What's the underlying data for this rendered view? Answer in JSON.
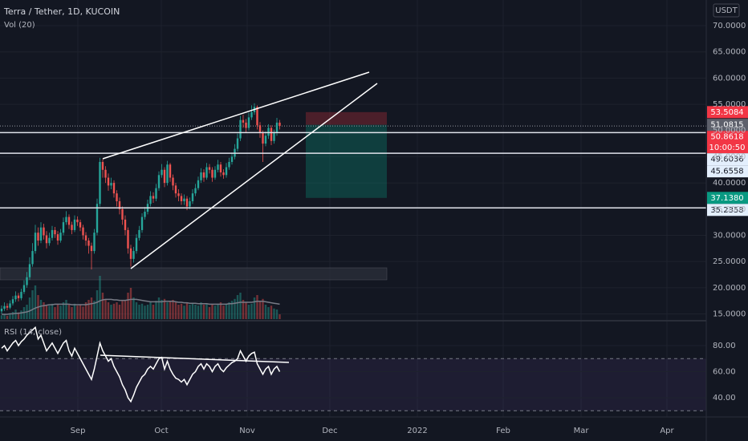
{
  "chart_data": [
    {
      "type": "candlestick",
      "title": "Terra / Tether, 1D, KUCOIN",
      "volume_label": "Vol (20)",
      "currency": "USDT",
      "up_color": "#26a69a",
      "down_color": "#ef5350",
      "open": [
        15.5,
        16.0,
        16.5,
        16.2,
        17.0,
        17.8,
        18.5,
        18.0,
        19.2,
        20.5,
        22.0,
        24.5,
        27.0,
        30.5,
        29.0,
        31.5,
        30.0,
        28.5,
        29.5,
        31.0,
        30.2,
        29.0,
        30.5,
        32.5,
        33.5,
        32.0,
        31.0,
        33.0,
        32.5,
        31.5,
        30.0,
        29.0,
        28.0,
        27.0,
        30.5,
        36.0,
        44.0,
        42.5,
        41.0,
        39.5,
        40.0,
        38.0,
        36.5,
        35.0,
        33.0,
        31.0,
        27.5,
        25.5,
        27.0,
        29.5,
        31.0,
        33.5,
        34.5,
        36.0,
        37.5,
        37.0,
        39.0,
        41.5,
        42.5,
        40.0,
        43.5,
        41.0,
        39.5,
        38.0,
        37.5,
        36.5,
        37.0,
        35.5,
        36.5,
        38.0,
        39.0,
        40.5,
        42.0,
        41.0,
        43.0,
        42.5,
        41.0,
        42.5,
        43.5,
        42.0,
        41.5,
        43.0,
        44.0,
        45.0,
        46.5,
        48.5,
        52.0,
        51.5,
        50.5,
        52.5,
        53.5,
        54.5,
        51.0,
        49.5,
        47.5,
        49.0,
        50.5,
        48.0,
        49.5,
        51.5
      ],
      "high": [
        16.6,
        17.2,
        17.0,
        17.6,
        18.4,
        19.3,
        19.0,
        19.8,
        21.4,
        23.0,
        25.8,
        28.5,
        32.0,
        31.5,
        32.5,
        32.2,
        30.8,
        30.5,
        31.8,
        31.6,
        30.8,
        31.2,
        33.4,
        34.6,
        34.0,
        32.6,
        33.8,
        33.6,
        33.0,
        32.0,
        30.6,
        29.5,
        28.6,
        31.2,
        37.0,
        44.8,
        44.5,
        43.2,
        41.8,
        41.0,
        40.5,
        38.6,
        37.2,
        35.5,
        33.8,
        31.5,
        28.2,
        27.8,
        30.2,
        31.8,
        34.2,
        35.4,
        36.8,
        38.4,
        38.2,
        39.8,
        42.2,
        43.6,
        43.0,
        44.2,
        43.8,
        41.6,
        40.0,
        38.8,
        38.0,
        37.8,
        37.5,
        37.2,
        38.8,
        39.8,
        41.2,
        42.8,
        42.6,
        43.8,
        43.6,
        43.0,
        43.2,
        44.4,
        44.0,
        42.6,
        43.8,
        44.8,
        45.8,
        47.4,
        49.4,
        52.8,
        53.0,
        52.2,
        53.4,
        54.8,
        55.2,
        54.8,
        51.6,
        50.0,
        49.8,
        51.2,
        51.0,
        50.2,
        52.4,
        52.0
      ],
      "low": [
        15.0,
        15.6,
        15.7,
        15.9,
        16.6,
        17.3,
        17.4,
        17.6,
        18.8,
        20.0,
        21.5,
        24.0,
        26.5,
        28.0,
        28.5,
        29.2,
        27.5,
        28.0,
        29.0,
        29.5,
        28.2,
        28.6,
        30.0,
        32.0,
        31.2,
        30.2,
        30.6,
        31.8,
        30.8,
        29.2,
        28.0,
        26.5,
        23.5,
        26.5,
        30.0,
        35.5,
        41.0,
        40.0,
        38.5,
        38.8,
        37.2,
        35.5,
        34.0,
        32.0,
        30.0,
        26.5,
        24.0,
        24.8,
        26.5,
        29.0,
        30.5,
        33.0,
        34.0,
        35.5,
        36.2,
        36.5,
        38.5,
        41.0,
        39.2,
        39.5,
        40.2,
        38.6,
        37.2,
        36.5,
        35.8,
        35.8,
        34.8,
        35.0,
        36.0,
        37.5,
        38.6,
        40.0,
        40.2,
        40.6,
        41.8,
        40.2,
        40.6,
        42.0,
        41.2,
        40.8,
        41.0,
        42.5,
        43.5,
        44.5,
        46.0,
        48.0,
        50.5,
        49.6,
        50.0,
        52.0,
        53.0,
        50.2,
        48.6,
        44.0,
        47.0,
        48.4,
        47.2,
        47.5,
        49.0,
        50.2
      ],
      "close": [
        16.0,
        16.5,
        16.2,
        17.0,
        17.8,
        18.5,
        18.0,
        19.2,
        20.5,
        22.0,
        24.5,
        27.0,
        30.5,
        29.0,
        31.5,
        30.0,
        28.5,
        29.5,
        31.0,
        30.2,
        29.0,
        30.5,
        32.5,
        33.5,
        32.0,
        31.0,
        33.0,
        32.5,
        31.5,
        30.0,
        29.0,
        28.0,
        27.0,
        30.5,
        36.0,
        44.0,
        42.5,
        41.0,
        39.5,
        40.0,
        38.0,
        36.5,
        35.0,
        33.0,
        31.0,
        27.5,
        25.5,
        27.0,
        29.5,
        31.0,
        33.5,
        34.5,
        36.0,
        37.5,
        37.0,
        39.0,
        41.5,
        42.5,
        40.0,
        43.5,
        41.0,
        39.5,
        38.0,
        37.5,
        36.5,
        37.0,
        35.5,
        36.5,
        38.0,
        39.0,
        40.5,
        42.0,
        41.0,
        43.0,
        42.5,
        41.0,
        42.5,
        43.5,
        42.0,
        41.5,
        43.0,
        44.0,
        45.0,
        46.5,
        48.5,
        52.0,
        51.5,
        50.5,
        52.5,
        53.5,
        54.5,
        51.0,
        49.5,
        47.5,
        49.0,
        50.5,
        48.0,
        49.5,
        51.5,
        50.8618
      ],
      "volume": [
        8,
        10,
        7,
        12,
        15,
        20,
        14,
        18,
        25,
        30,
        45,
        60,
        70,
        50,
        40,
        35,
        30,
        28,
        32,
        25,
        30,
        28,
        35,
        40,
        30,
        25,
        32,
        28,
        30,
        26,
        35,
        40,
        45,
        38,
        60,
        90,
        55,
        40,
        35,
        30,
        32,
        35,
        30,
        38,
        40,
        55,
        65,
        45,
        35,
        30,
        32,
        28,
        30,
        35,
        30,
        38,
        45,
        40,
        42,
        35,
        38,
        40,
        35,
        30,
        32,
        28,
        35,
        30,
        32,
        30,
        28,
        35,
        30,
        32,
        25,
        30,
        28,
        30,
        35,
        28,
        32,
        35,
        38,
        42,
        50,
        55,
        40,
        35,
        30,
        32,
        45,
        50,
        38,
        42,
        30,
        25,
        28,
        22,
        20,
        10
      ],
      "volume_ma": [
        10,
        10,
        10,
        11,
        11,
        12,
        12,
        13,
        14,
        15,
        17,
        20,
        23,
        25,
        27,
        28,
        29,
        30,
        30,
        31,
        31,
        31,
        31,
        31,
        31,
        30,
        30,
        30,
        30,
        30,
        30,
        31,
        32,
        33,
        35,
        38,
        40,
        41,
        41,
        41,
        40,
        40,
        39,
        39,
        39,
        40,
        41,
        41,
        41,
        40,
        39,
        38,
        37,
        36,
        36,
        36,
        36,
        36,
        37,
        37,
        37,
        37,
        36,
        35,
        35,
        34,
        34,
        33,
        33,
        33,
        32,
        32,
        32,
        32,
        31,
        31,
        31,
        31,
        31,
        31,
        31,
        32,
        32,
        33,
        34,
        35,
        35,
        35,
        35,
        35,
        36,
        37,
        37,
        37,
        36,
        35,
        34,
        33,
        32,
        31
      ],
      "ylim": [
        13.7,
        74.9
      ],
      "yticks": [
        {
          "value": 15,
          "label": "15.0000"
        },
        {
          "value": 20,
          "label": "20.0000"
        },
        {
          "value": 25,
          "label": "25.0000"
        },
        {
          "value": 30,
          "label": "30.0000"
        },
        {
          "value": 35,
          "label": "35.0000"
        },
        {
          "value": 40,
          "label": "40.0000"
        },
        {
          "value": 45,
          "label": "45.0000"
        },
        {
          "value": 50,
          "label": "50.0000"
        },
        {
          "value": 55,
          "label": "55.0000"
        },
        {
          "value": 60,
          "label": "60.0000"
        },
        {
          "value": 65,
          "label": "65.0000"
        },
        {
          "value": 70,
          "label": "70.0000"
        }
      ],
      "time_labels": [
        "Sep",
        "Oct",
        "Nov",
        "Dec",
        "2022",
        "Feb",
        "Mar",
        "Apr"
      ],
      "horizontal_lines": [
        49.6036,
        45.6558,
        35.2358
      ],
      "position": {
        "stop": 53.5084,
        "entry": 51.0815,
        "target": {
          "value": 37.138,
          "label": "37.1380"
        }
      },
      "last_price": 50.8618,
      "countdown": "10:00:50"
    },
    {
      "type": "line",
      "title": "RSI (14, close)",
      "color": "#ffffff",
      "values": [
        78,
        80,
        76,
        79,
        82,
        84,
        80,
        83,
        85,
        88,
        90,
        92,
        94,
        85,
        88,
        82,
        76,
        79,
        82,
        78,
        74,
        78,
        82,
        84,
        76,
        72,
        78,
        74,
        70,
        66,
        62,
        58,
        54,
        62,
        72,
        82,
        76,
        72,
        68,
        70,
        64,
        60,
        56,
        50,
        46,
        40,
        37,
        42,
        48,
        52,
        56,
        58,
        62,
        64,
        62,
        66,
        70,
        71,
        62,
        68,
        62,
        58,
        55,
        54,
        52,
        54,
        50,
        54,
        58,
        60,
        64,
        66,
        62,
        66,
        64,
        60,
        64,
        66,
        62,
        60,
        63,
        65,
        67,
        68,
        70,
        76,
        72,
        68,
        72,
        74,
        75,
        66,
        62,
        58,
        62,
        64,
        58,
        62,
        64,
        60
      ],
      "ylim": [
        25.2,
        98.5
      ],
      "band": [
        30,
        70
      ],
      "yticks": [
        {
          "value": 40,
          "label": "40.00"
        },
        {
          "value": 60,
          "label": "60.00"
        },
        {
          "value": 80,
          "label": "80.00"
        }
      ]
    }
  ]
}
